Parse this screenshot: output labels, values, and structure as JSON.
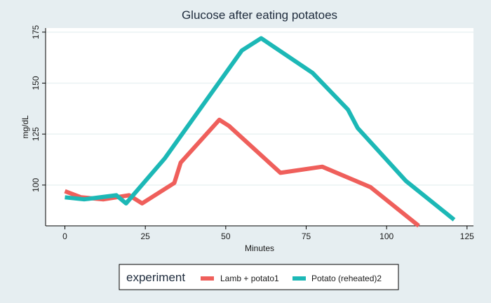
{
  "chart_data": {
    "type": "line",
    "title": "Glucose after eating potatoes",
    "xlabel": "Minutes",
    "ylabel": "mg/dL",
    "xlim": [
      -6,
      127
    ],
    "ylim": [
      80,
      177
    ],
    "xticks": [
      0,
      25,
      50,
      75,
      100,
      125
    ],
    "yticks": [
      100,
      125,
      150,
      175
    ],
    "grid": true,
    "legend": {
      "title": "experiment",
      "position": "bottom"
    },
    "series": [
      {
        "name": "Lamb + potato1",
        "color": "#ef5f5b",
        "points": [
          [
            0,
            97
          ],
          [
            5,
            94
          ],
          [
            12,
            93
          ],
          [
            20,
            95
          ],
          [
            24,
            91
          ],
          [
            34,
            101
          ],
          [
            36,
            111
          ],
          [
            48,
            132
          ],
          [
            51,
            129
          ],
          [
            67,
            106
          ],
          [
            80,
            109
          ],
          [
            95,
            99
          ],
          [
            110,
            80
          ]
        ]
      },
      {
        "name": "Potato (reheated)2",
        "color": "#1cb8b6",
        "points": [
          [
            0,
            94
          ],
          [
            6,
            93
          ],
          [
            16,
            95
          ],
          [
            19,
            91
          ],
          [
            31,
            113
          ],
          [
            55,
            166
          ],
          [
            61,
            172
          ],
          [
            77,
            155
          ],
          [
            88,
            137
          ],
          [
            91,
            128
          ],
          [
            106,
            102
          ],
          [
            121,
            83
          ]
        ]
      }
    ]
  }
}
